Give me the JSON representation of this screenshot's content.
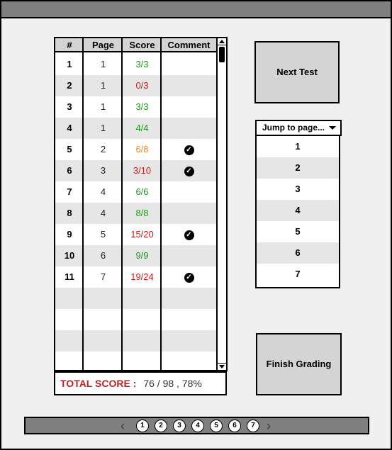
{
  "table": {
    "headers": [
      "#",
      "Page",
      "Score",
      "Comment"
    ],
    "rows": [
      {
        "num": "1",
        "page": "1",
        "score": "3/3",
        "score_color": "#1a9a1a",
        "comment": false
      },
      {
        "num": "2",
        "page": "1",
        "score": "0/3",
        "score_color": "#c81d1d",
        "comment": false
      },
      {
        "num": "3",
        "page": "1",
        "score": "3/3",
        "score_color": "#1a9a1a",
        "comment": false
      },
      {
        "num": "4",
        "page": "1",
        "score": "4/4",
        "score_color": "#1a9a1a",
        "comment": false
      },
      {
        "num": "5",
        "page": "2",
        "score": "6/8",
        "score_color": "#f08a1a",
        "comment": true
      },
      {
        "num": "6",
        "page": "3",
        "score": "3/10",
        "score_color": "#c81d1d",
        "comment": true
      },
      {
        "num": "7",
        "page": "4",
        "score": "6/6",
        "score_color": "#1a9a1a",
        "comment": false
      },
      {
        "num": "8",
        "page": "4",
        "score": "8/8",
        "score_color": "#1a9a1a",
        "comment": false
      },
      {
        "num": "9",
        "page": "5",
        "score": "15/20",
        "score_color": "#c81d1d",
        "comment": true
      },
      {
        "num": "10",
        "page": "6",
        "score": "9/9",
        "score_color": "#1a9a1a",
        "comment": false
      },
      {
        "num": "11",
        "page": "7",
        "score": "19/24",
        "score_color": "#c81d1d",
        "comment": true
      }
    ],
    "empty_rows": 4
  },
  "total": {
    "label": "TOTAL SCORE :",
    "value": "76 / 98 , 78%"
  },
  "buttons": {
    "next_test": "Next Test",
    "finish_grading": "Finish Grading"
  },
  "jump": {
    "label": "Jump to page...",
    "pages": [
      "1",
      "2",
      "3",
      "4",
      "5",
      "6",
      "7"
    ]
  },
  "pager": {
    "prev": "‹",
    "next": "›",
    "pages": [
      "1",
      "2",
      "3",
      "4",
      "5",
      "6",
      "7"
    ]
  },
  "icons": {
    "comment": "checkmark-circle-icon",
    "dropdown": "caret-down-icon"
  },
  "colors": {
    "pass": "#1a9a1a",
    "fail": "#c81d1d",
    "partial": "#f08a1a"
  }
}
